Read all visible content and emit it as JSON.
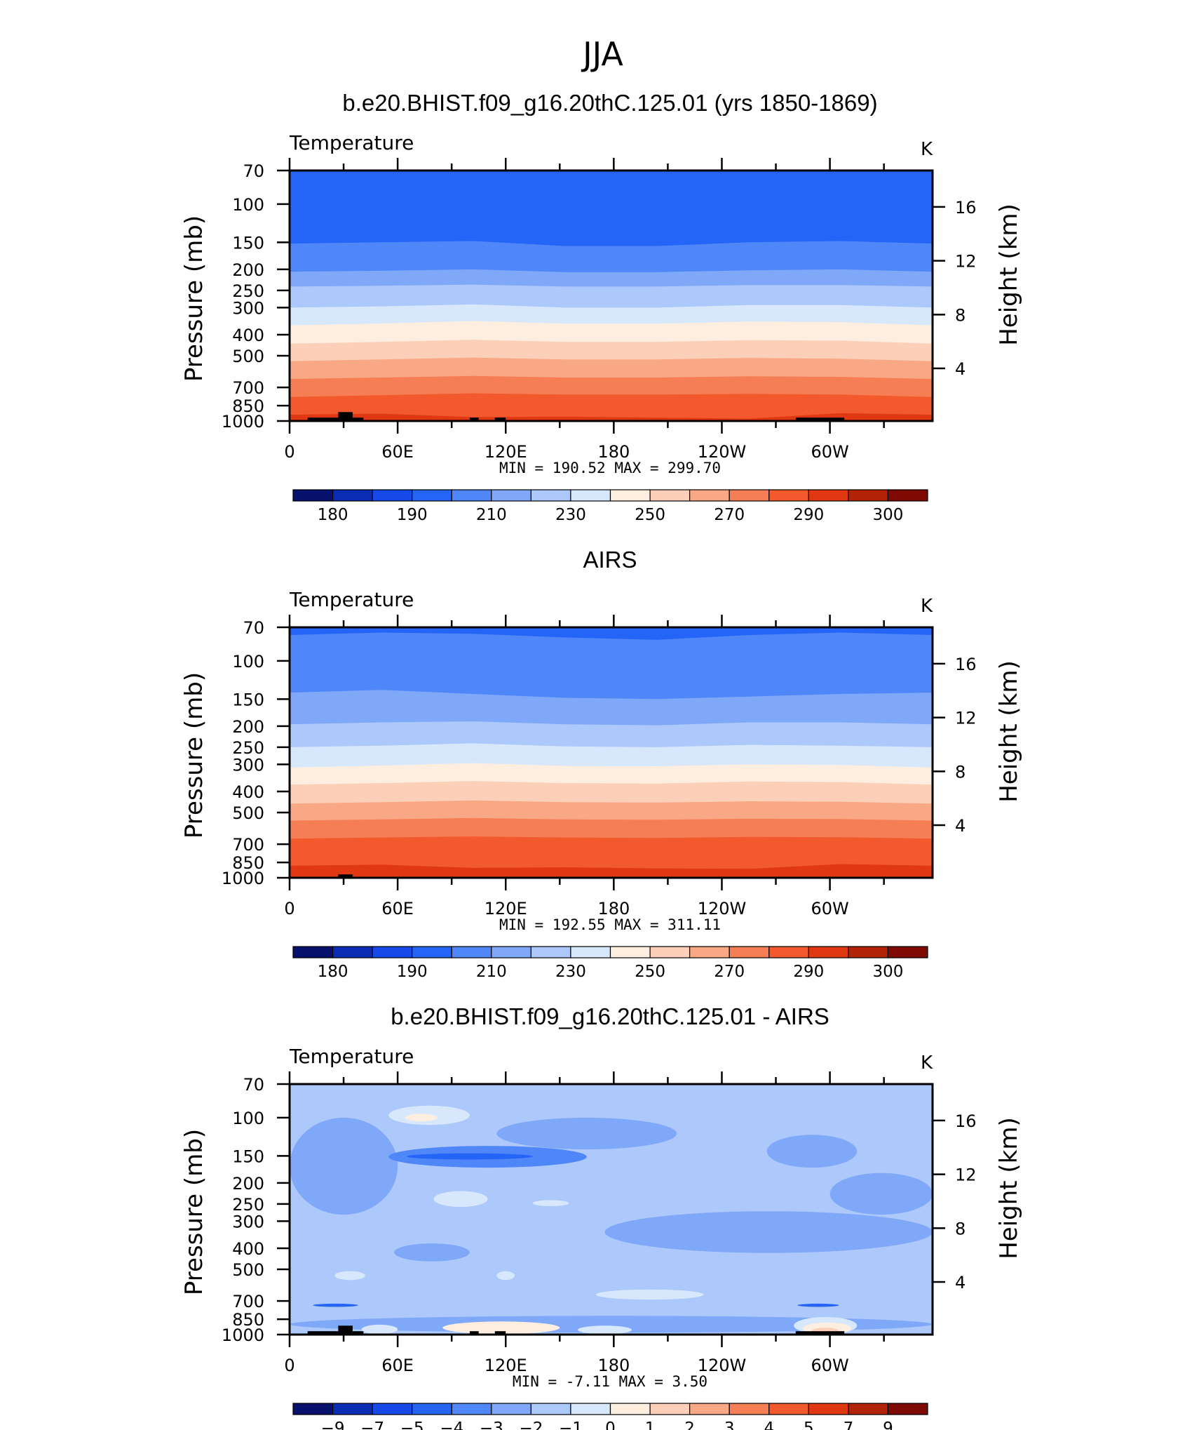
{
  "figure": {
    "title": "JJA"
  },
  "colors": {
    "temp_palette": [
      "#08106e",
      "#0a2db4",
      "#1748e8",
      "#2464f6",
      "#4f87f8",
      "#80a8f9",
      "#adc8fb",
      "#d8e8fc",
      "#fdeee0",
      "#fccfb8",
      "#f9a886",
      "#f67e55",
      "#f25a2d",
      "#e03812",
      "#b22307",
      "#7f0a03"
    ],
    "diff_palette": [
      "#08106e",
      "#0a2db4",
      "#1748e8",
      "#2464f6",
      "#4f87f8",
      "#80a8f9",
      "#adc8fb",
      "#d8e8fc",
      "#fdeee0",
      "#fccfb8",
      "#f9a886",
      "#f67e55",
      "#f25a2d",
      "#e03812",
      "#b22307",
      "#7f0a03"
    ],
    "terrain": "#000000"
  },
  "chart_data": [
    {
      "type": "heatmap",
      "title": "b.e20.BHIST.f09_g16.20thC.125.01 (yrs 1850-1869)",
      "left_label": "Temperature",
      "right_label": "K",
      "ylabel": "Pressure (mb)",
      "ylabel_right": "Height (km)",
      "x_ticks": [
        "0",
        "60E",
        "120E",
        "180",
        "120W",
        "60W"
      ],
      "x_tick_values": [
        0,
        60,
        120,
        180,
        240,
        300
      ],
      "xlim": [
        0,
        357
      ],
      "y_ticks": [
        "70",
        "100",
        "150",
        "200",
        "250",
        "300",
        "400",
        "500",
        "700",
        "850",
        "1000"
      ],
      "y_tick_values": [
        70,
        100,
        150,
        200,
        250,
        300,
        400,
        500,
        700,
        850,
        1000
      ],
      "ylim": [
        1000,
        70
      ],
      "yscale": "log",
      "right_ticks": [
        "16",
        "12",
        "8",
        "4"
      ],
      "right_tick_values": [
        16,
        12,
        8,
        4
      ],
      "stats_text": "MIN =  190.52   MAX =  299.70",
      "min": 190.52,
      "max": 299.7,
      "colorbar_labels": [
        "180",
        "190",
        "210",
        "230",
        "250",
        "270",
        "290",
        "300"
      ],
      "band_boundaries": [
        {
          "level": 205,
          "p": [
            152,
            150,
            148,
            156,
            156,
            150,
            148,
            152
          ]
        },
        {
          "level": 215,
          "p": [
            205,
            203,
            200,
            206,
            206,
            202,
            200,
            205
          ]
        },
        {
          "level": 225,
          "p": [
            240,
            238,
            235,
            240,
            240,
            236,
            236,
            240
          ]
        },
        {
          "level": 235,
          "p": [
            300,
            296,
            290,
            300,
            300,
            292,
            292,
            300
          ]
        },
        {
          "level": 245,
          "p": [
            362,
            355,
            346,
            356,
            356,
            348,
            350,
            362
          ]
        },
        {
          "level": 255,
          "p": [
            440,
            432,
            422,
            432,
            432,
            424,
            426,
            440
          ]
        },
        {
          "level": 265,
          "p": [
            530,
            520,
            510,
            520,
            520,
            512,
            516,
            530
          ]
        },
        {
          "level": 275,
          "p": [
            640,
            630,
            620,
            630,
            630,
            622,
            626,
            640
          ]
        },
        {
          "level": 285,
          "p": [
            775,
            760,
            745,
            755,
            755,
            750,
            755,
            775
          ]
        },
        {
          "level": 295,
          "p": [
            935,
            925,
            960,
            955,
            965,
            975,
            920,
            935
          ]
        }
      ],
      "terrain": [
        {
          "lon": [
            10,
            27
          ],
          "p_top": 965
        },
        {
          "lon": [
            27,
            35
          ],
          "p_top": 910
        },
        {
          "lon": [
            35,
            41
          ],
          "p_top": 965
        },
        {
          "lon": [
            100,
            105
          ],
          "p_top": 965
        },
        {
          "lon": [
            114,
            120
          ],
          "p_top": 965
        },
        {
          "lon": [
            281,
            308
          ],
          "p_top": 965
        }
      ]
    },
    {
      "type": "heatmap",
      "title": "AIRS",
      "left_label": "Temperature",
      "right_label": "K",
      "ylabel": "Pressure (mb)",
      "ylabel_right": "Height (km)",
      "x_ticks": [
        "0",
        "60E",
        "120E",
        "180",
        "120W",
        "60W"
      ],
      "x_tick_values": [
        0,
        60,
        120,
        180,
        240,
        300
      ],
      "xlim": [
        0,
        357
      ],
      "y_ticks": [
        "70",
        "100",
        "150",
        "200",
        "250",
        "300",
        "400",
        "500",
        "700",
        "850",
        "1000"
      ],
      "y_tick_values": [
        70,
        100,
        150,
        200,
        250,
        300,
        400,
        500,
        700,
        850,
        1000
      ],
      "ylim": [
        1000,
        70
      ],
      "yscale": "log",
      "right_ticks": [
        "16",
        "12",
        "8",
        "4"
      ],
      "right_tick_values": [
        16,
        12,
        8,
        4
      ],
      "stats_text": "MIN =  192.55   MAX =  311.11",
      "min": 192.55,
      "max": 311.11,
      "colorbar_labels": [
        "180",
        "190",
        "210",
        "230",
        "250",
        "270",
        "290",
        "300"
      ],
      "band_boundaries": [
        {
          "level": 205,
          "p": [
            76,
            74,
            75,
            78,
            80,
            76,
            74,
            76
          ]
        },
        {
          "level": 215,
          "p": [
            140,
            136,
            142,
            148,
            150,
            146,
            142,
            140
          ]
        },
        {
          "level": 225,
          "p": [
            196,
            192,
            190,
            196,
            198,
            192,
            192,
            196
          ]
        },
        {
          "level": 235,
          "p": [
            250,
            246,
            240,
            248,
            250,
            244,
            246,
            250
          ]
        },
        {
          "level": 245,
          "p": [
            310,
            304,
            296,
            305,
            306,
            300,
            302,
            310
          ]
        },
        {
          "level": 255,
          "p": [
            372,
            366,
            358,
            366,
            368,
            360,
            362,
            372
          ]
        },
        {
          "level": 265,
          "p": [
            455,
            448,
            440,
            448,
            450,
            444,
            446,
            455
          ]
        },
        {
          "level": 275,
          "p": [
            545,
            538,
            530,
            538,
            540,
            534,
            536,
            545
          ]
        },
        {
          "level": 285,
          "p": [
            660,
            652,
            645,
            652,
            655,
            648,
            650,
            660
          ]
        },
        {
          "level": 295,
          "p": [
            880,
            870,
            900,
            895,
            905,
            910,
            865,
            880
          ]
        }
      ],
      "terrain": [
        {
          "lon": [
            27,
            35
          ],
          "p_top": 965
        }
      ]
    },
    {
      "type": "heatmap",
      "title": "b.e20.BHIST.f09_g16.20thC.125.01 - AIRS",
      "left_label": "Temperature",
      "right_label": "K",
      "ylabel": "Pressure (mb)",
      "ylabel_right": "Height (km)",
      "x_ticks": [
        "0",
        "60E",
        "120E",
        "180",
        "120W",
        "60W"
      ],
      "x_tick_values": [
        0,
        60,
        120,
        180,
        240,
        300
      ],
      "xlim": [
        0,
        357
      ],
      "y_ticks": [
        "70",
        "100",
        "150",
        "200",
        "250",
        "300",
        "400",
        "500",
        "700",
        "850",
        "1000"
      ],
      "y_tick_values": [
        70,
        100,
        150,
        200,
        250,
        300,
        400,
        500,
        700,
        850,
        1000
      ],
      "ylim": [
        1000,
        70
      ],
      "yscale": "log",
      "right_ticks": [
        "16",
        "12",
        "8",
        "4"
      ],
      "right_tick_values": [
        16,
        12,
        8,
        4
      ],
      "stats_text": "MIN =   -7.11   MAX =    3.50",
      "min": -7.11,
      "max": 3.5,
      "colorbar_labels": [
        "-9",
        "-7",
        "-5",
        "-4",
        "-3",
        "-2",
        "-1",
        "0",
        "1",
        "2",
        "3",
        "4",
        "5",
        "7",
        "9"
      ],
      "background_level": -1.5,
      "blobs": [
        {
          "level": -2.5,
          "lon": [
            0,
            60
          ],
          "p": [
            100,
            280
          ]
        },
        {
          "level": -2.5,
          "lon": [
            115,
            215
          ],
          "p": [
            100,
            140
          ]
        },
        {
          "level": -2.5,
          "lon": [
            265,
            315
          ],
          "p": [
            120,
            170
          ]
        },
        {
          "level": -2.5,
          "lon": [
            175,
            357
          ],
          "p": [
            270,
            420
          ]
        },
        {
          "level": -2.5,
          "lon": [
            300,
            357
          ],
          "p": [
            180,
            280
          ]
        },
        {
          "level": -2.5,
          "lon": [
            58,
            100
          ],
          "p": [
            380,
            460
          ]
        },
        {
          "level": -2.5,
          "lon": [
            0,
            357
          ],
          "p": [
            820,
            980
          ]
        },
        {
          "level": -3.5,
          "lon": [
            55,
            165
          ],
          "p": [
            135,
            170
          ]
        },
        {
          "level": -4.5,
          "lon": [
            65,
            135
          ],
          "p": [
            146,
            156
          ]
        },
        {
          "level": -0.5,
          "lon": [
            55,
            100
          ],
          "p": [
            88,
            108
          ]
        },
        {
          "level": 0.5,
          "lon": [
            64,
            82
          ],
          "p": [
            96,
            104
          ]
        },
        {
          "level": -0.5,
          "lon": [
            80,
            110
          ],
          "p": [
            218,
            258
          ]
        },
        {
          "level": -0.5,
          "lon": [
            135,
            155
          ],
          "p": [
            240,
            256
          ]
        },
        {
          "level": -0.5,
          "lon": [
            25,
            42
          ],
          "p": [
            510,
            560
          ]
        },
        {
          "level": -0.5,
          "lon": [
            115,
            125
          ],
          "p": [
            510,
            560
          ]
        },
        {
          "level": -0.5,
          "lon": [
            170,
            230
          ],
          "p": [
            620,
            690
          ]
        },
        {
          "level": 0.5,
          "lon": [
            85,
            150
          ],
          "p": [
            870,
            995
          ]
        },
        {
          "level": -0.5,
          "lon": [
            40,
            60
          ],
          "p": [
            900,
            995
          ]
        },
        {
          "level": -0.5,
          "lon": [
            160,
            190
          ],
          "p": [
            910,
            995
          ]
        },
        {
          "level": -0.5,
          "lon": [
            280,
            315
          ],
          "p": [
            830,
            995
          ]
        },
        {
          "level": 0.5,
          "lon": [
            285,
            312
          ],
          "p": [
            880,
            995
          ]
        },
        {
          "level": 1.5,
          "lon": [
            290,
            305
          ],
          "p": [
            930,
            995
          ]
        },
        {
          "level": -4.5,
          "lon": [
            282,
            305
          ],
          "p": [
            720,
            745
          ]
        },
        {
          "level": -4.5,
          "lon": [
            13,
            38
          ],
          "p": [
            720,
            745
          ]
        }
      ],
      "terrain": [
        {
          "lon": [
            10,
            27
          ],
          "p_top": 965
        },
        {
          "lon": [
            27,
            35
          ],
          "p_top": 910
        },
        {
          "lon": [
            35,
            41
          ],
          "p_top": 965
        },
        {
          "lon": [
            100,
            105
          ],
          "p_top": 965
        },
        {
          "lon": [
            114,
            120
          ],
          "p_top": 965
        },
        {
          "lon": [
            281,
            308
          ],
          "p_top": 965
        }
      ]
    }
  ]
}
